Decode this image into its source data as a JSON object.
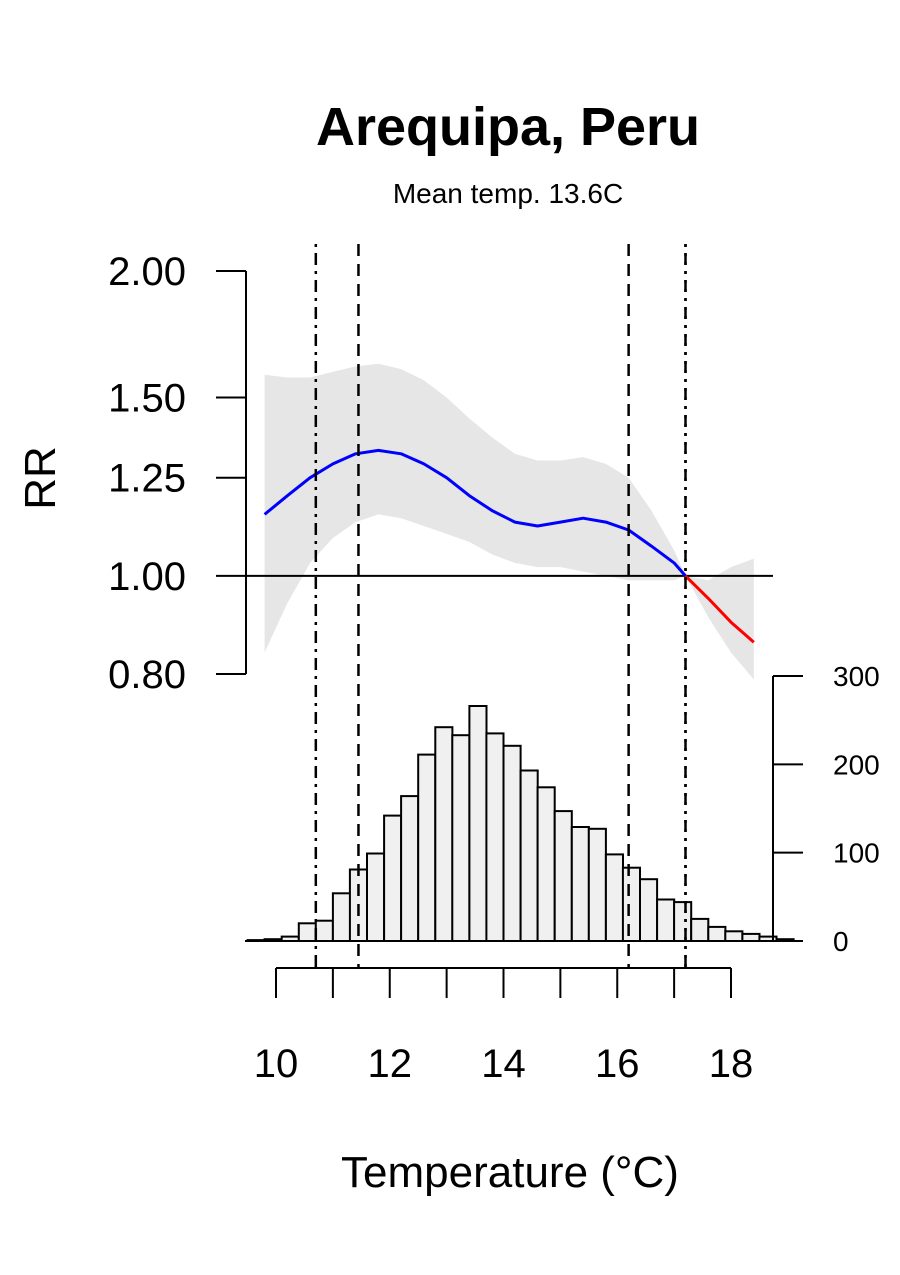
{
  "chart_data": [
    {
      "type": "line",
      "title": "Arequipa, Peru",
      "subtitle": "Mean temp. 13.6C",
      "ylabel": "RR",
      "xlabel": "Temperature (°C)",
      "ylim": [
        0.8,
        2.0
      ],
      "y_scale": "log",
      "yticks": [
        "0.80",
        "1.00",
        "1.25",
        "1.50",
        "2.00"
      ],
      "reference_line": 1.0,
      "series": [
        {
          "color": "#0000ff",
          "x": [
            9.8,
            10.2,
            10.6,
            11.0,
            11.4,
            11.8,
            12.2,
            12.6,
            13.0,
            13.4,
            13.8,
            14.2,
            14.6,
            15.0,
            15.4,
            15.8,
            16.2,
            16.6,
            17.0,
            17.2
          ],
          "y": [
            1.15,
            1.2,
            1.25,
            1.29,
            1.32,
            1.33,
            1.32,
            1.29,
            1.25,
            1.2,
            1.16,
            1.13,
            1.12,
            1.13,
            1.14,
            1.13,
            1.11,
            1.07,
            1.03,
            1.0
          ]
        },
        {
          "color": "#ff0000",
          "x": [
            17.2,
            17.6,
            18.0,
            18.4
          ],
          "y": [
            1.0,
            0.95,
            0.9,
            0.86
          ]
        }
      ],
      "ci": {
        "color": "#e6e6e6",
        "x": [
          9.8,
          10.2,
          10.6,
          11.0,
          11.4,
          11.8,
          12.2,
          12.6,
          13.0,
          13.4,
          13.8,
          14.2,
          14.6,
          15.0,
          15.4,
          15.8,
          16.2,
          16.6,
          17.0,
          17.2,
          17.6,
          18.0,
          18.4
        ],
        "upper": [
          1.58,
          1.57,
          1.57,
          1.59,
          1.61,
          1.62,
          1.6,
          1.56,
          1.5,
          1.43,
          1.37,
          1.32,
          1.3,
          1.3,
          1.31,
          1.29,
          1.25,
          1.16,
          1.06,
          1.0,
          0.99,
          1.02,
          1.04
        ],
        "lower": [
          0.84,
          0.94,
          1.03,
          1.09,
          1.13,
          1.15,
          1.14,
          1.12,
          1.1,
          1.08,
          1.05,
          1.03,
          1.02,
          1.02,
          1.01,
          1.0,
          0.99,
          0.99,
          0.99,
          1.0,
          0.91,
          0.84,
          0.79
        ]
      },
      "vlines": [
        {
          "x": 10.7,
          "style": "dotdash"
        },
        {
          "x": 11.45,
          "style": "dashed"
        },
        {
          "x": 16.2,
          "style": "dashed"
        },
        {
          "x": 17.2,
          "style": "dotted"
        },
        {
          "x": 17.2,
          "style": "dotdash"
        }
      ]
    },
    {
      "type": "bar",
      "subtype": "histogram",
      "xticks": [
        "10",
        "12",
        "14",
        "16",
        "18"
      ],
      "yticks": [
        "0",
        "100",
        "200",
        "300"
      ],
      "ylim": [
        0,
        300
      ],
      "bin_width": 0.3,
      "bin_start": 9.5,
      "fill": "#f0f0f0",
      "values": [
        1,
        2,
        5,
        20,
        23,
        54,
        81,
        99,
        142,
        164,
        211,
        242,
        233,
        266,
        235,
        221,
        193,
        174,
        147,
        129,
        127,
        98,
        83,
        70,
        47,
        44,
        25,
        16,
        11,
        8,
        5,
        2
      ]
    }
  ]
}
